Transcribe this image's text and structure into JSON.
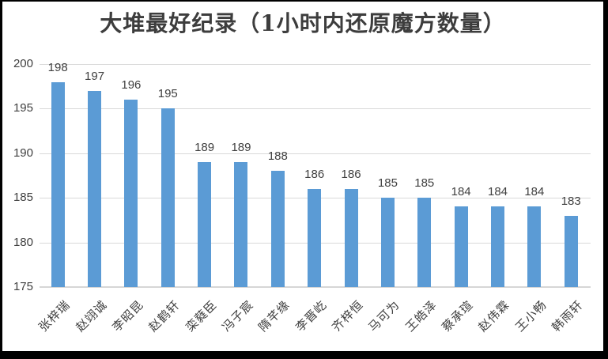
{
  "chart_data": {
    "type": "bar",
    "title": "大堆最好纪录（1小时内还原魔方数量）",
    "categories": [
      "张梓瑞",
      "赵翊诚",
      "李昭昆",
      "赵鹤轩",
      "栾蕤臣",
      "冯子宸",
      "隋芊缘",
      "李晋屹",
      "齐梓恒",
      "马可为",
      "王皓泽",
      "蔡承瑄",
      "赵伟霖",
      "王小畅",
      "韩雨轩"
    ],
    "values": [
      198,
      197,
      196,
      195,
      189,
      189,
      188,
      186,
      186,
      185,
      185,
      184,
      184,
      184,
      183
    ],
    "data_labels": [
      198,
      197,
      196,
      195,
      189,
      189,
      188,
      186,
      186,
      185,
      185,
      184,
      184,
      184,
      183
    ],
    "xlabel": "",
    "ylabel": "",
    "ylim": [
      175,
      200
    ],
    "yticks": [
      175,
      180,
      185,
      190,
      195,
      200
    ],
    "grid": true,
    "legend": false,
    "colors": {
      "bar": "#5b9bd5",
      "gridline": "#d9d9d9",
      "axis_line": "#d6d6d6",
      "text": "#404040",
      "title_text": "#3d3d3d",
      "background": "#ffffff",
      "frame_border": "#000000"
    }
  }
}
